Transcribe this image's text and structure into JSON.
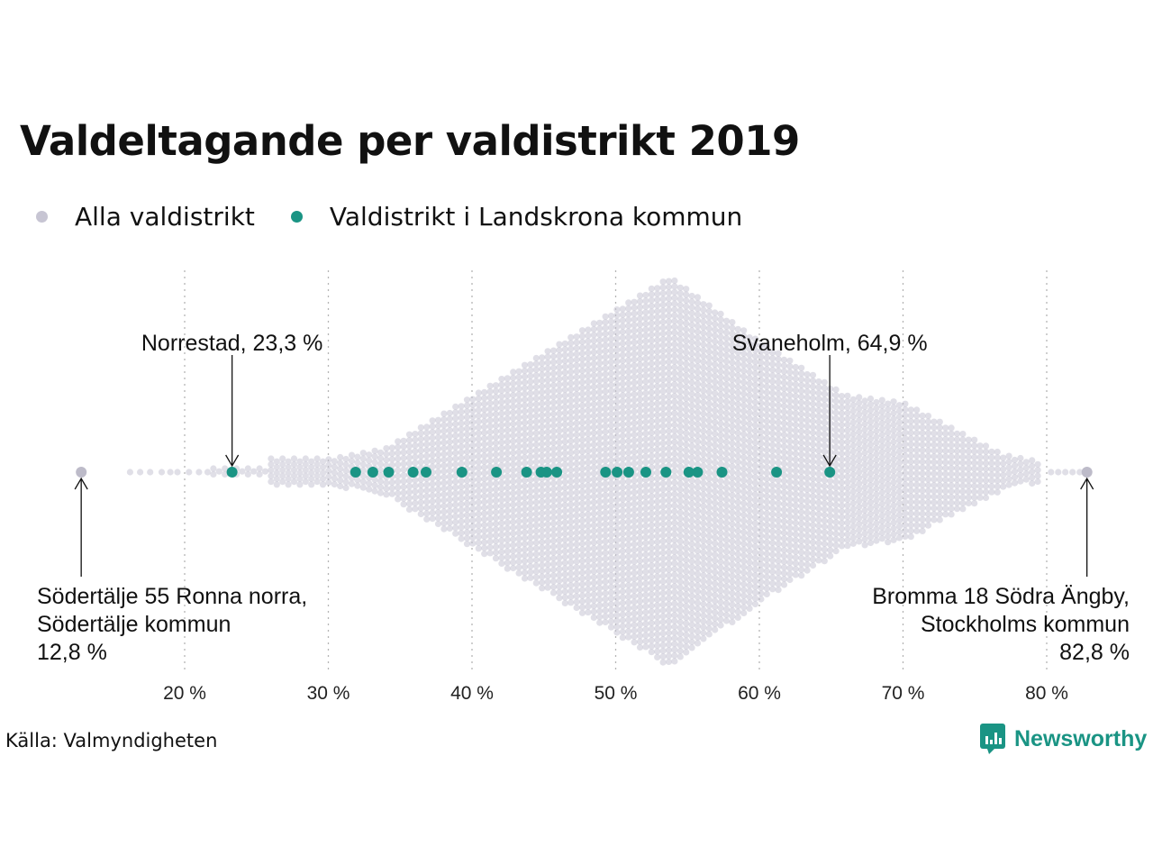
{
  "title": "Valdeltagande per valdistrikt 2019",
  "legend": [
    {
      "label": "Alla valdistrikt",
      "color": "#c7c5d3"
    },
    {
      "label": "Valdistrikt i Landskrona kommun",
      "color": "#1a9484"
    }
  ],
  "source": "Källa: Valmyndigheten",
  "brand": {
    "name": "Newsworthy",
    "color": "#1a9484",
    "icon": "newsworthy-logo-icon"
  },
  "chart_data": {
    "type": "scatter",
    "subtype": "beeswarm",
    "title": "Valdeltagande per valdistrikt 2019",
    "xlim": [
      12,
      84
    ],
    "xticks": [
      20,
      30,
      40,
      50,
      60,
      70,
      80
    ],
    "xtick_labels": [
      "20 %",
      "30 %",
      "40 %",
      "50 %",
      "60 %",
      "70 %",
      "80 %"
    ],
    "grid": "vertical dotted",
    "legend_position": "top-left",
    "series": [
      {
        "name": "Alla valdistrikt",
        "color": "#c7c5d3",
        "distribution": "dense swarm of all districts; range 12.8 to 82.8, peak near 53.8",
        "min": 12.8,
        "max": 82.8
      },
      {
        "name": "Valdistrikt i Landskrona kommun",
        "color": "#1a9484",
        "values": [
          23.3,
          31.9,
          33.1,
          34.2,
          35.9,
          36.8,
          39.3,
          41.7,
          43.8,
          44.8,
          45.2,
          45.9,
          49.3,
          50.1,
          50.9,
          52.1,
          53.5,
          55.1,
          55.7,
          57.4,
          61.2,
          64.9
        ]
      }
    ],
    "annotations": [
      {
        "lines": [
          "Norrestad, 23,3 %"
        ],
        "value": 23.3,
        "align": "center",
        "position": "above"
      },
      {
        "lines": [
          "Svaneholm, 64,9 %"
        ],
        "value": 64.9,
        "align": "center",
        "position": "above"
      },
      {
        "lines": [
          "Södertälje 55 Ronna norra,",
          "Södertälje kommun",
          "12,8 %"
        ],
        "value": 12.8,
        "align": "left",
        "position": "below"
      },
      {
        "lines": [
          "Bromma 18 Södra Ängby,",
          "Stockholms kommun",
          "82,8 %"
        ],
        "value": 82.8,
        "align": "right",
        "position": "below"
      }
    ]
  }
}
